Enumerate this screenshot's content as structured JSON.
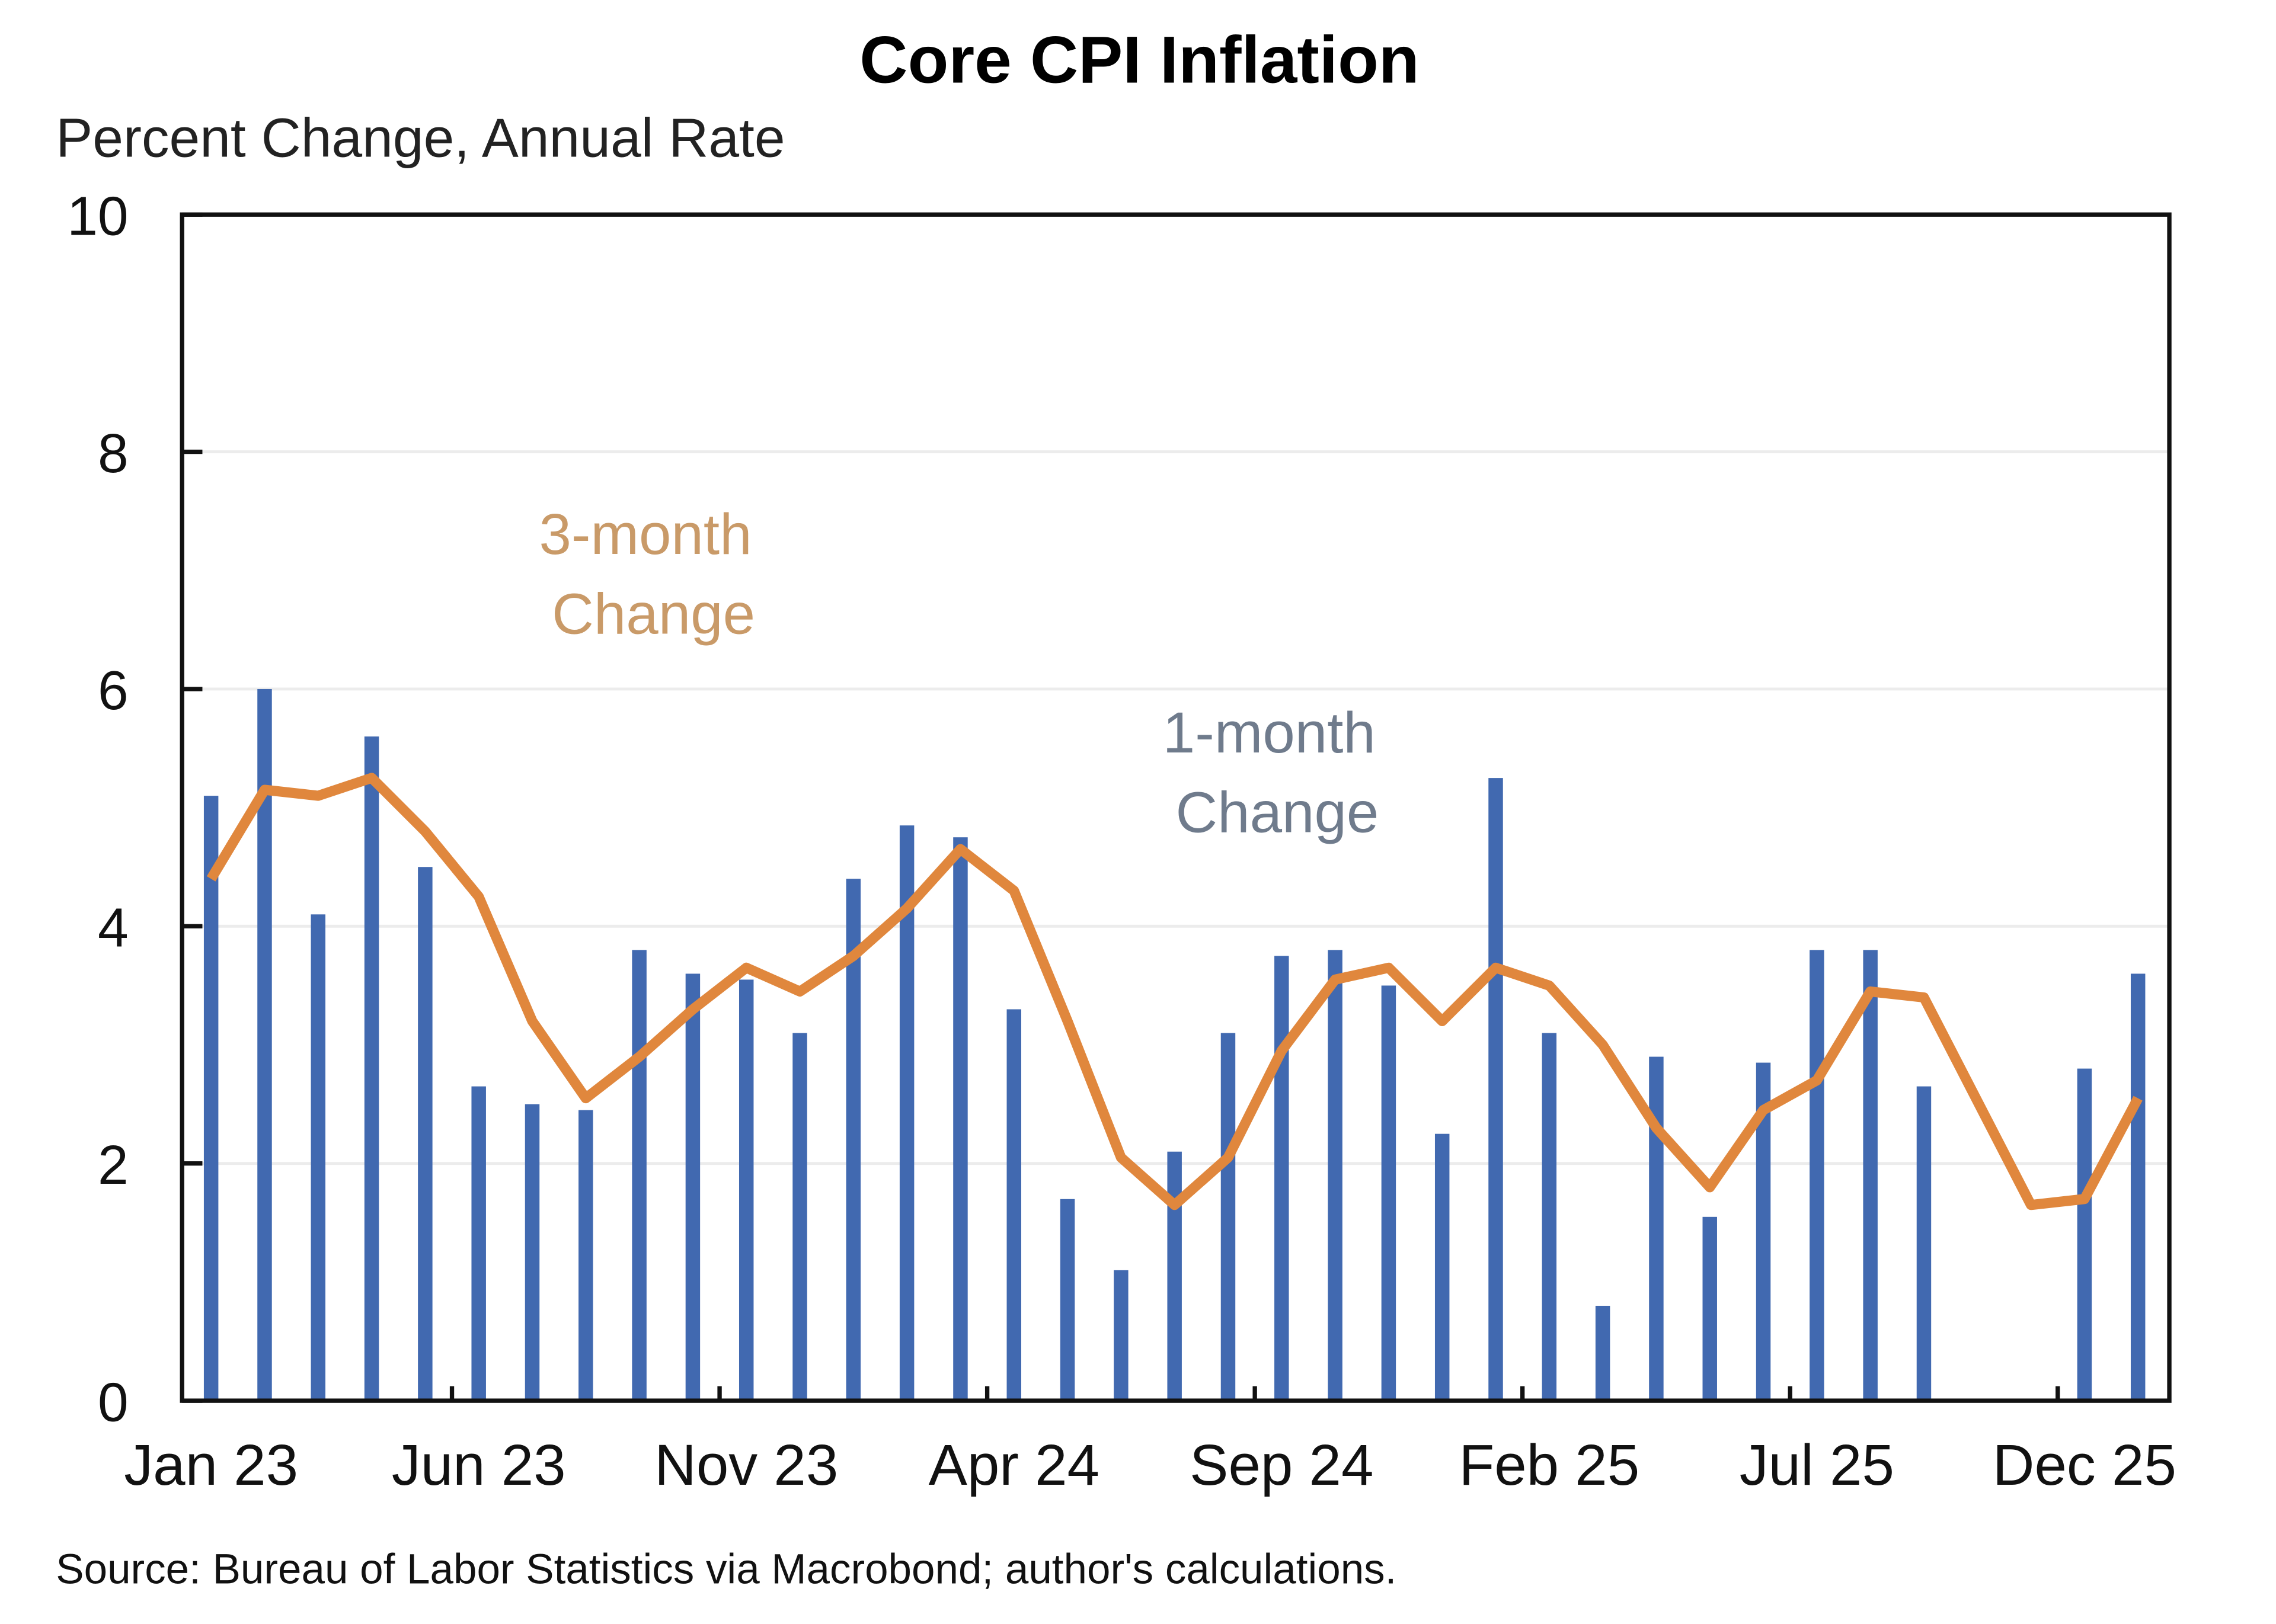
{
  "chart_data": {
    "type": "bar+line",
    "title": "Core CPI Inflation",
    "subtitle": "Percent Change, Annual Rate",
    "source": "Source: Bureau of Labor Statistics via Macrobond; author's calculations.",
    "ylim": [
      0,
      10
    ],
    "yticks": [
      0,
      2,
      4,
      6,
      8,
      10
    ],
    "grid": true,
    "xtick_labels": [
      "Jan 23",
      "Jun 23",
      "Nov 23",
      "Apr 24",
      "Sep 24",
      "Feb 25",
      "Jul 25",
      "Dec 25"
    ],
    "months": [
      "Jan 23",
      "Feb 23",
      "Mar 23",
      "Apr 23",
      "May 23",
      "Jun 23",
      "Jul 23",
      "Aug 23",
      "Sep 23",
      "Oct 23",
      "Nov 23",
      "Dec 23",
      "Jan 24",
      "Feb 24",
      "Mar 24",
      "Apr 24",
      "May 24",
      "Jun 24",
      "Jul 24",
      "Aug 24",
      "Sep 24",
      "Oct 24",
      "Nov 24",
      "Dec 24",
      "Jan 25",
      "Feb 25",
      "Mar 25",
      "Apr 25",
      "May 25",
      "Jun 25",
      "Jul 25",
      "Aug 25",
      "Sep 25",
      "Oct 25",
      "Nov 25",
      "Dec 25",
      "Jan 26"
    ],
    "series": [
      {
        "name": "1-month Change",
        "type": "bar",
        "color": "#4169b0",
        "values": [
          5.1,
          6.0,
          4.1,
          5.6,
          4.5,
          2.65,
          2.5,
          2.45,
          3.8,
          3.6,
          3.55,
          3.1,
          4.4,
          4.85,
          4.75,
          3.3,
          1.7,
          1.1,
          2.1,
          3.1,
          3.75,
          3.8,
          3.5,
          2.25,
          5.25,
          3.1,
          0.8,
          2.9,
          1.55,
          2.85,
          3.8,
          3.8,
          2.65,
          null,
          null,
          2.8,
          3.6
        ]
      },
      {
        "name": "3-month Change",
        "type": "line",
        "color": "#e0873d",
        "values": [
          4.4,
          5.15,
          5.1,
          5.25,
          4.8,
          4.25,
          3.2,
          2.55,
          2.9,
          3.3,
          3.65,
          3.45,
          3.75,
          4.15,
          4.65,
          4.3,
          3.2,
          2.05,
          1.65,
          2.05,
          2.95,
          3.55,
          3.65,
          3.2,
          3.65,
          3.5,
          3.0,
          2.3,
          1.8,
          2.45,
          2.7,
          3.45,
          3.4,
          null,
          1.65,
          1.7,
          2.55
        ]
      }
    ],
    "annotations": {
      "three_month": [
        "3-month",
        "Change"
      ],
      "one_month": [
        "1-month",
        "Change"
      ]
    },
    "label_colors": {
      "three_month": "#c99a68",
      "one_month": "#6f7b8c"
    }
  }
}
